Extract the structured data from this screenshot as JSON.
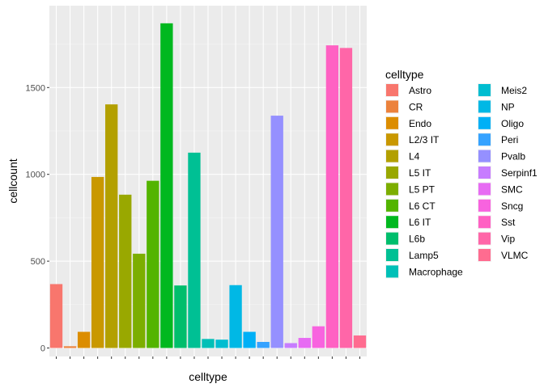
{
  "chart_data": {
    "type": "bar",
    "xlabel": "celltype",
    "ylabel": "cellcount",
    "legend_title": "celltype",
    "legend_position": "right",
    "grid": true,
    "ylim": [
      0,
      1950
    ],
    "yticks": [
      0,
      500,
      1000,
      1500
    ],
    "categories": [
      "Astro",
      "CR",
      "Endo",
      "L2/3 IT",
      "L4",
      "L5 IT",
      "L5 PT",
      "L6 CT",
      "L6 IT",
      "L6b",
      "Lamp5",
      "Macrophage",
      "Meis2",
      "NP",
      "Oligo",
      "Peri",
      "Pvalb",
      "Serpinf1",
      "SMC",
      "Sncg",
      "Sst",
      "Vip",
      "VLMC"
    ],
    "values": [
      368,
      10,
      93,
      985,
      1403,
      883,
      543,
      963,
      1870,
      360,
      1125,
      52,
      48,
      362,
      93,
      35,
      1338,
      28,
      58,
      125,
      1743,
      1728,
      72
    ],
    "colors": [
      "#F8766D",
      "#EC823C",
      "#DC8D00",
      "#C99800",
      "#B3A000",
      "#99A800",
      "#7CAE00",
      "#53B400",
      "#00B81F",
      "#00BE6C",
      "#00C094",
      "#00C0B7",
      "#00BDD0",
      "#00B8E5",
      "#00B0F6",
      "#35A2FF",
      "#9590FF",
      "#C77CFF",
      "#E76BF3",
      "#F863DF",
      "#FF61C3",
      "#FF66A8",
      "#FF6C90"
    ]
  }
}
